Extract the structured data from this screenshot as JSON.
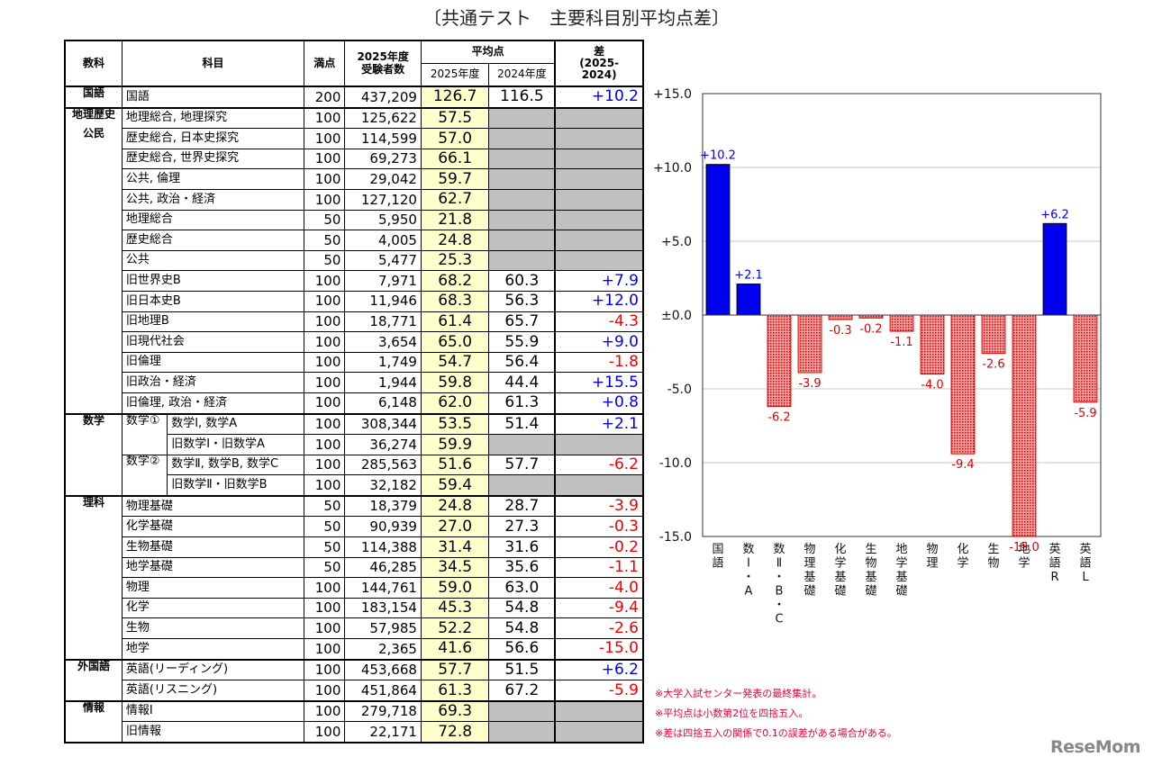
{
  "title": "〔共通テスト　主要科目別平均点差〕",
  "table": {
    "header": {
      "group": "教科",
      "subject": "科目",
      "full": "満点",
      "examinees": [
        "2025年度",
        "受験者数"
      ],
      "average": "平均点",
      "avg2025": "2025年度",
      "avg2024": "2024年度",
      "diff": [
        "差",
        "(2025-",
        "2024)"
      ]
    },
    "groups": [
      {
        "label": [
          "国語"
        ],
        "rows": [
          {
            "subject": "国語",
            "full": "200",
            "examinees": "437,209",
            "avg2025": "126.7",
            "avg2024": "116.5",
            "diff": "+10.2"
          }
        ]
      },
      {
        "label": [
          "地理歴史",
          "公民"
        ],
        "rows": [
          {
            "subject": "地理総合, 地理探究",
            "full": "100",
            "examinees": "125,622",
            "avg2025": "57.5"
          },
          {
            "subject": "歴史総合, 日本史探究",
            "full": "100",
            "examinees": "114,599",
            "avg2025": "57.0"
          },
          {
            "subject": "歴史総合, 世界史探究",
            "full": "100",
            "examinees": "69,273",
            "avg2025": "66.1"
          },
          {
            "subject": "公共, 倫理",
            "full": "100",
            "examinees": "29,042",
            "avg2025": "59.7"
          },
          {
            "subject": "公共, 政治・経済",
            "full": "100",
            "examinees": "127,120",
            "avg2025": "62.7"
          },
          {
            "subject": "地理総合",
            "full": "50",
            "examinees": "5,950",
            "avg2025": "21.8"
          },
          {
            "subject": "歴史総合",
            "full": "50",
            "examinees": "4,005",
            "avg2025": "24.8"
          },
          {
            "subject": "公共",
            "full": "50",
            "examinees": "5,477",
            "avg2025": "25.3"
          },
          {
            "subject": "旧世界史B",
            "full": "100",
            "examinees": "7,971",
            "avg2025": "68.2",
            "avg2024": "60.3",
            "diff": "+7.9"
          },
          {
            "subject": "旧日本史B",
            "full": "100",
            "examinees": "11,946",
            "avg2025": "68.3",
            "avg2024": "56.3",
            "diff": "+12.0"
          },
          {
            "subject": "旧地理B",
            "full": "100",
            "examinees": "18,771",
            "avg2025": "61.4",
            "avg2024": "65.7",
            "diff": "-4.3"
          },
          {
            "subject": "旧現代社会",
            "full": "100",
            "examinees": "3,654",
            "avg2025": "65.0",
            "avg2024": "55.9",
            "diff": "+9.0"
          },
          {
            "subject": "旧倫理",
            "full": "100",
            "examinees": "1,749",
            "avg2025": "54.7",
            "avg2024": "56.4",
            "diff": "-1.8"
          },
          {
            "subject": "旧政治・経済",
            "full": "100",
            "examinees": "1,944",
            "avg2025": "59.8",
            "avg2024": "44.4",
            "diff": "+15.5"
          },
          {
            "subject": "旧倫理, 政治・経済",
            "full": "100",
            "examinees": "6,148",
            "avg2025": "62.0",
            "avg2024": "61.3",
            "diff": "+0.8"
          }
        ]
      },
      {
        "label": [
          "数学"
        ],
        "rows": [
          {
            "sub": "数学①",
            "rows": [
              {
                "subject": "数学Ⅰ, 数学A",
                "full": "100",
                "examinees": "308,344",
                "avg2025": "53.5",
                "avg2024": "51.4",
                "diff": "+2.1"
              },
              {
                "subject": "旧数学Ⅰ・旧数学A",
                "full": "100",
                "examinees": "36,274",
                "avg2025": "59.9"
              }
            ]
          },
          {
            "sub": "数学②",
            "rows": [
              {
                "subject": "数学Ⅱ, 数学B, 数学C",
                "full": "100",
                "examinees": "285,563",
                "avg2025": "51.6",
                "avg2024": "57.7",
                "diff": "-6.2"
              },
              {
                "subject": "旧数学Ⅱ・旧数学B",
                "full": "100",
                "examinees": "32,182",
                "avg2025": "59.4"
              }
            ]
          }
        ]
      },
      {
        "label": [
          "理科"
        ],
        "rows": [
          {
            "subject": "物理基礎",
            "full": "50",
            "examinees": "18,379",
            "avg2025": "24.8",
            "avg2024": "28.7",
            "diff": "-3.9"
          },
          {
            "subject": "化学基礎",
            "full": "50",
            "examinees": "90,939",
            "avg2025": "27.0",
            "avg2024": "27.3",
            "diff": "-0.3"
          },
          {
            "subject": "生物基礎",
            "full": "50",
            "examinees": "114,388",
            "avg2025": "31.4",
            "avg2024": "31.6",
            "diff": "-0.2"
          },
          {
            "subject": "地学基礎",
            "full": "50",
            "examinees": "46,285",
            "avg2025": "34.5",
            "avg2024": "35.6",
            "diff": "-1.1"
          },
          {
            "subject": "物理",
            "full": "100",
            "examinees": "144,761",
            "avg2025": "59.0",
            "avg2024": "63.0",
            "diff": "-4.0"
          },
          {
            "subject": "化学",
            "full": "100",
            "examinees": "183,154",
            "avg2025": "45.3",
            "avg2024": "54.8",
            "diff": "-9.4"
          },
          {
            "subject": "生物",
            "full": "100",
            "examinees": "57,985",
            "avg2025": "52.2",
            "avg2024": "54.8",
            "diff": "-2.6"
          },
          {
            "subject": "地学",
            "full": "100",
            "examinees": "2,365",
            "avg2025": "41.6",
            "avg2024": "56.6",
            "diff": "-15.0"
          }
        ]
      },
      {
        "label": [
          "外国語"
        ],
        "rows": [
          {
            "subject": "英語(リーディング)",
            "full": "100",
            "examinees": "453,668",
            "avg2025": "57.7",
            "avg2024": "51.5",
            "diff": "+6.2"
          },
          {
            "subject": "英語(リスニング)",
            "full": "100",
            "examinees": "451,864",
            "avg2025": "61.3",
            "avg2024": "67.2",
            "diff": "-5.9"
          }
        ]
      },
      {
        "label": [
          "情報"
        ],
        "rows": [
          {
            "subject": "情報Ⅰ",
            "full": "100",
            "examinees": "279,718",
            "avg2025": "69.3"
          },
          {
            "subject": "旧情報",
            "full": "100",
            "examinees": "22,171",
            "avg2025": "72.8"
          }
        ]
      }
    ]
  },
  "chart_data": {
    "type": "bar",
    "categories": [
      "国語",
      "数Ⅰ・A",
      "数Ⅱ・B・C",
      "物理基礎",
      "化学基礎",
      "生物基礎",
      "地学基礎",
      "物理",
      "化学",
      "生物",
      "地学",
      "英語R",
      "英語L"
    ],
    "values": [
      10.2,
      2.1,
      -6.2,
      -3.9,
      -0.3,
      -0.2,
      -1.1,
      -4.0,
      -9.4,
      -2.6,
      -15.0,
      6.2,
      -5.9
    ],
    "value_labels": [
      "+10.2",
      "+2.1",
      "-6.2",
      "-3.9",
      "-0.3",
      "-0.2",
      "-1.1",
      "-4.0",
      "-9.4",
      "-2.6",
      "-15.0",
      "+6.2",
      "-5.9"
    ],
    "positive_color": "#0000ee",
    "negative_color": "#f2a0a0",
    "ylim": [
      -15,
      15
    ],
    "yticks": [
      {
        "value": -15,
        "label": "-15.0"
      },
      {
        "value": -10,
        "label": "-10.0"
      },
      {
        "value": -5,
        "label": "-5.0"
      },
      {
        "value": 0,
        "label": "±0.0"
      },
      {
        "value": 5,
        "label": "+5.0"
      },
      {
        "value": 10,
        "label": "+10.0"
      },
      {
        "value": 15,
        "label": "+15.0"
      }
    ],
    "grid": true
  },
  "notes": [
    "※大学入試センター発表の最終集計。",
    "※平均点は小数第2位を四捨五入。",
    "※差は四捨五入の関係で0.1の誤差がある場合がある。"
  ],
  "logo": "ReseMom"
}
